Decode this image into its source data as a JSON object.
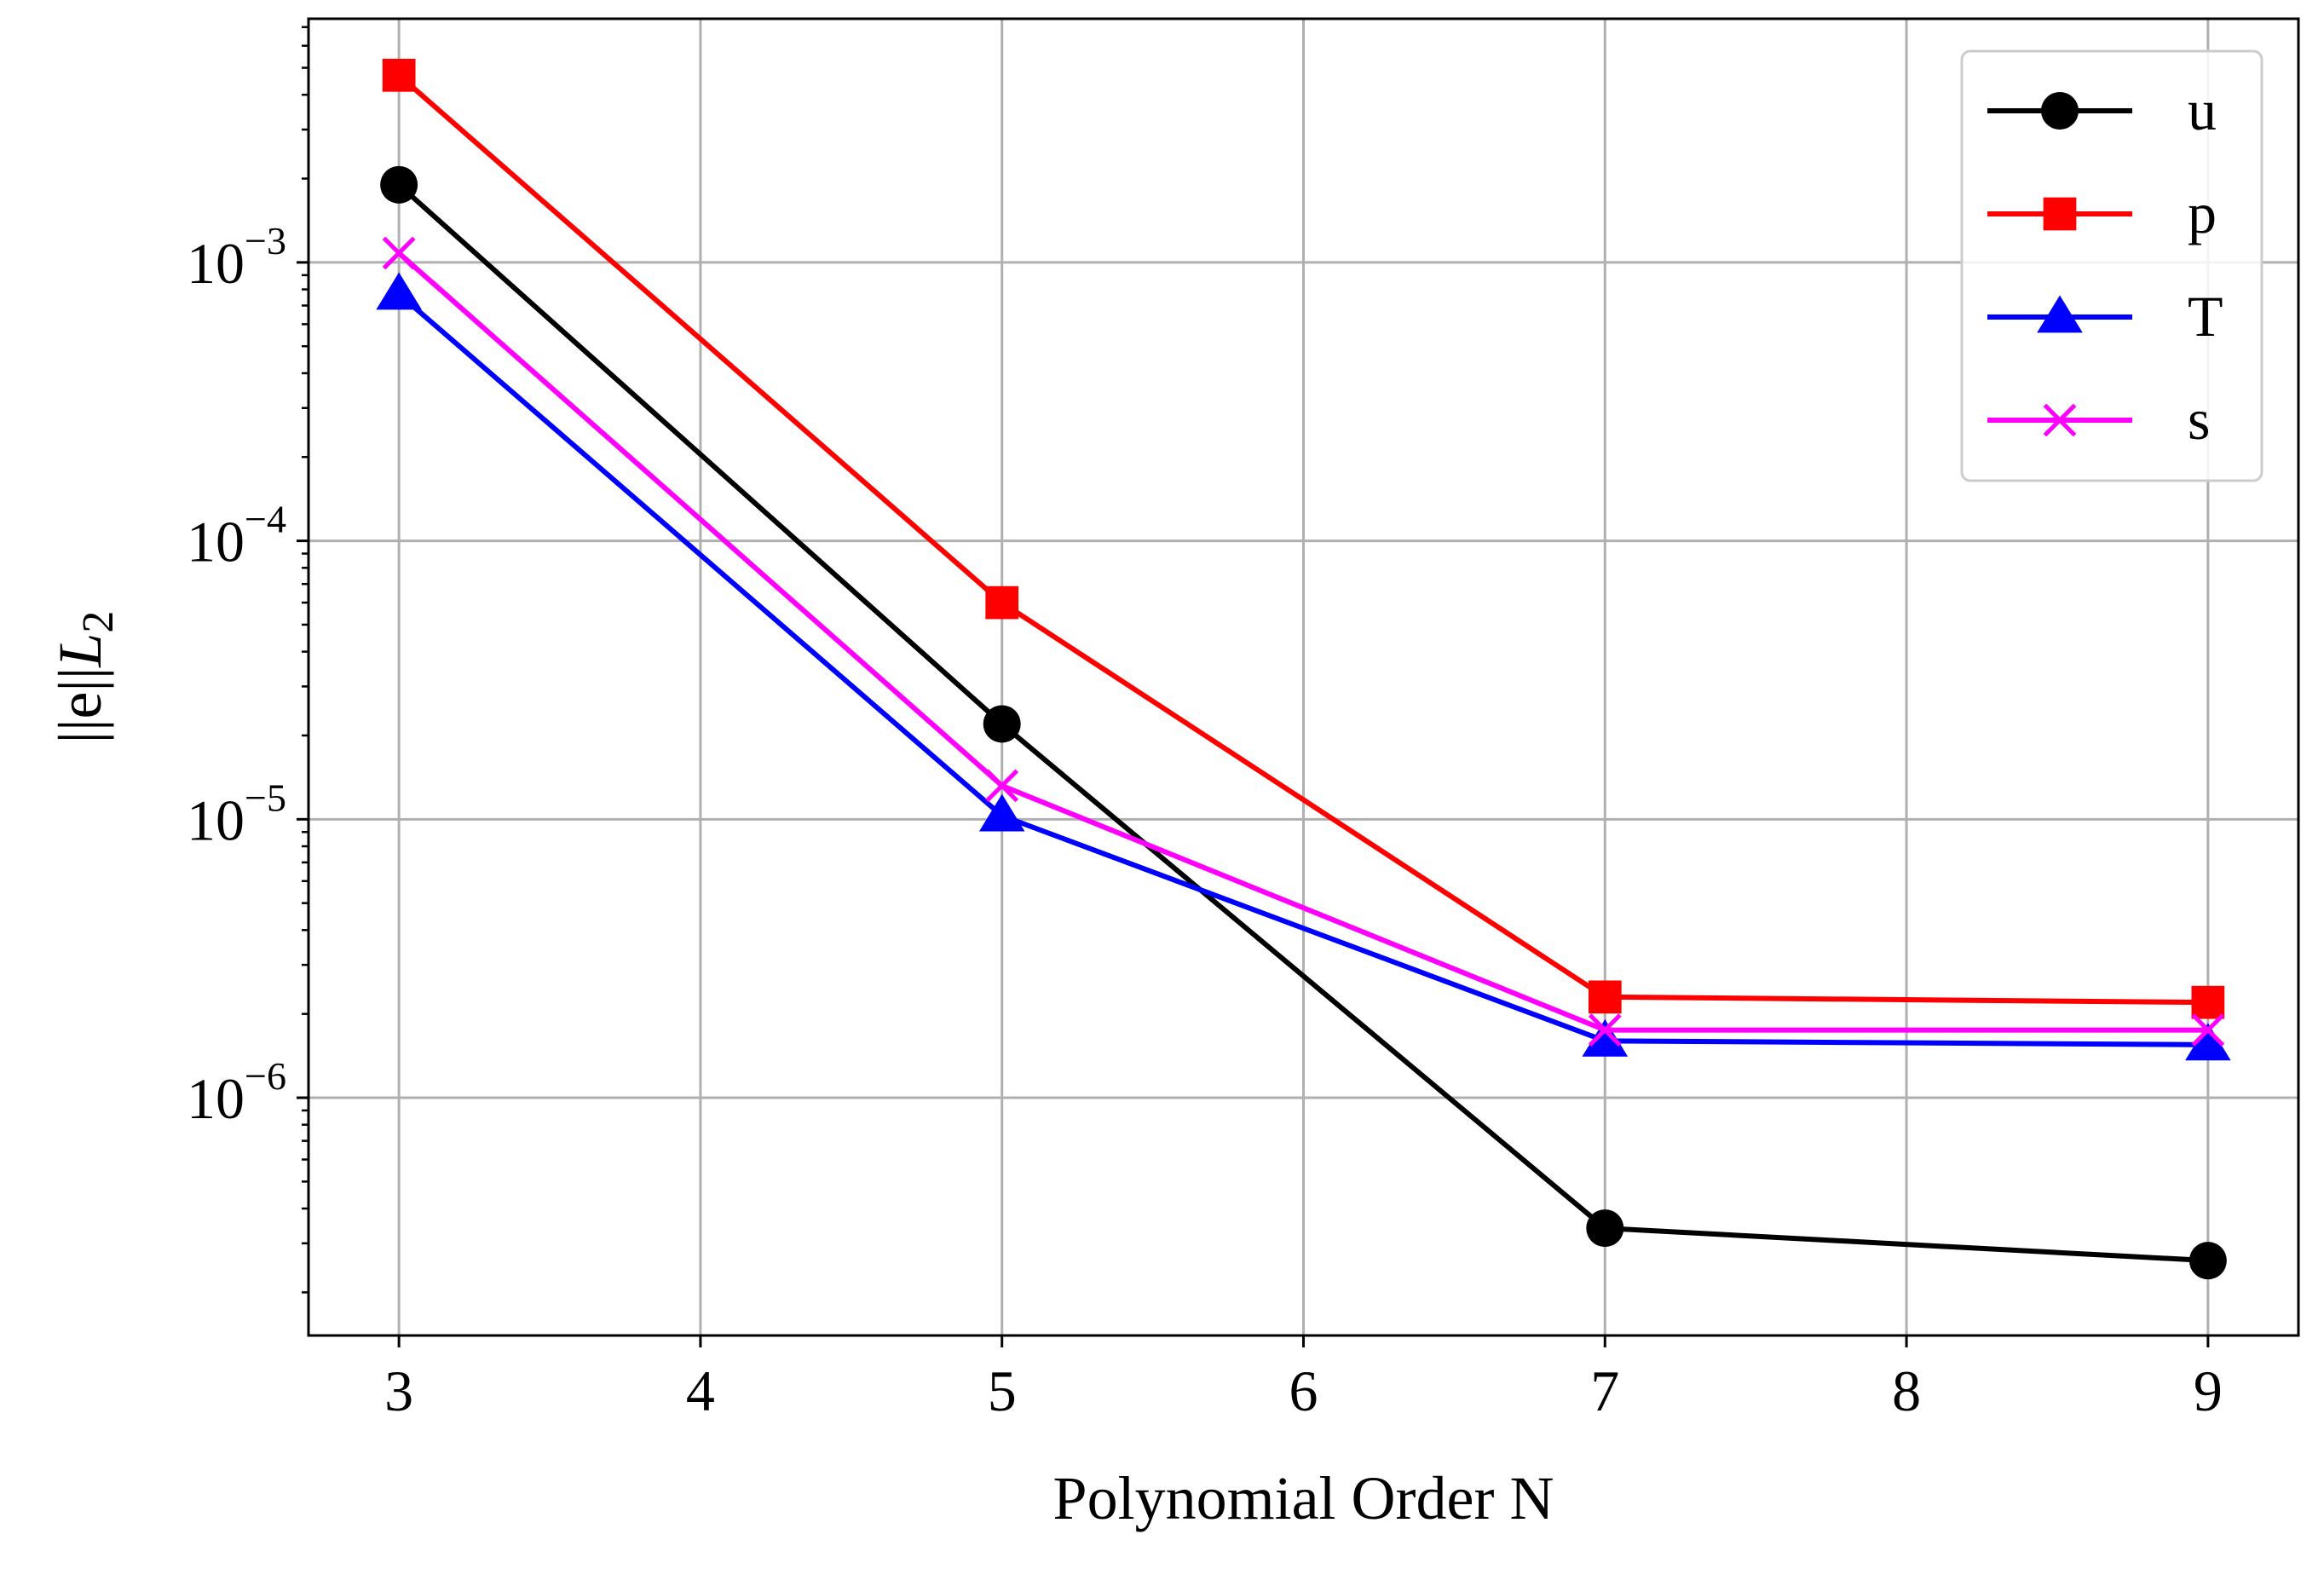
{
  "chart_data": {
    "type": "line",
    "xlabel": "Polynomial Order N",
    "ylabel_base": "||e||",
    "ylabel_sub_var": "L",
    "ylabel_sub_idx": "2",
    "x": [
      3,
      5,
      7,
      9
    ],
    "xlim": [
      2.7,
      9.3
    ],
    "ylim": [
      1.4e-07,
      0.0075
    ],
    "yscale": "log",
    "grid": true,
    "legend_position": "top-right",
    "xticks": [
      {
        "value": 3,
        "label": "3"
      },
      {
        "value": 4,
        "label": "4"
      },
      {
        "value": 5,
        "label": "5"
      },
      {
        "value": 6,
        "label": "6"
      },
      {
        "value": 7,
        "label": "7"
      },
      {
        "value": 8,
        "label": "8"
      },
      {
        "value": 9,
        "label": "9"
      }
    ],
    "yticks": [
      {
        "value": 1e-06,
        "base": "10",
        "exp": "−6"
      },
      {
        "value": 1e-05,
        "base": "10",
        "exp": "−5"
      },
      {
        "value": 0.0001,
        "base": "10",
        "exp": "−4"
      },
      {
        "value": 0.001,
        "base": "10",
        "exp": "−3"
      }
    ],
    "series": [
      {
        "name": "u",
        "color": "#000000",
        "marker": "circle",
        "values": [
          0.0019,
          2.2e-05,
          3.4e-07,
          2.6e-07
        ]
      },
      {
        "name": "p",
        "color": "#ff0000",
        "marker": "square",
        "values": [
          0.0047,
          6e-05,
          2.3e-06,
          2.2e-06
        ]
      },
      {
        "name": "T",
        "color": "#0000ff",
        "marker": "triangle",
        "values": [
          0.00077,
          1.03e-05,
          1.6e-06,
          1.55e-06
        ]
      },
      {
        "name": "s",
        "color": "#ff00ff",
        "marker": "x",
        "values": [
          0.00108,
          1.32e-05,
          1.75e-06,
          1.75e-06
        ]
      }
    ]
  }
}
